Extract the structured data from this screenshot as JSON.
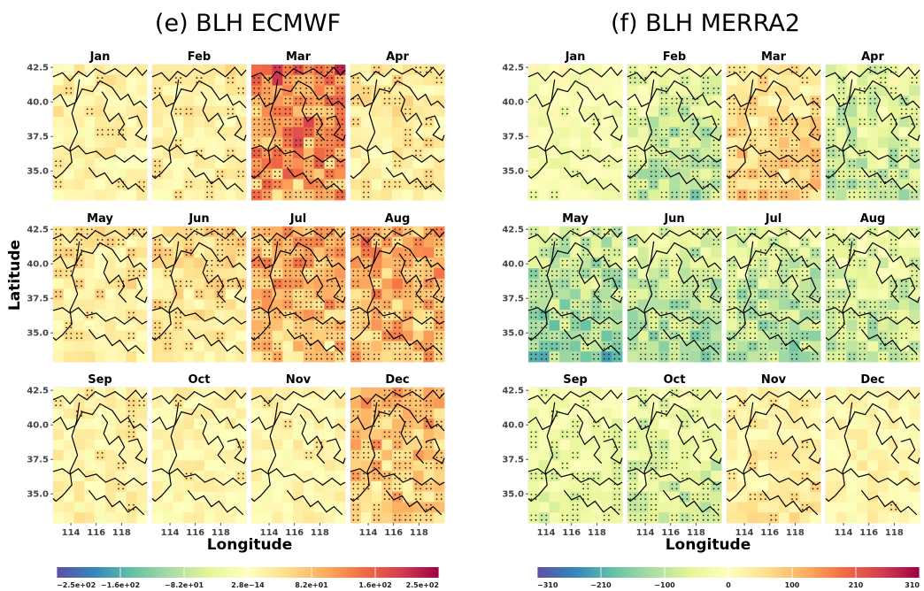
{
  "panels": [
    {
      "title": "(e) BLH ECMWF",
      "xlabel": "Longitude",
      "ylabel": "Latitude",
      "colorbar": {
        "min": -250,
        "max": 250,
        "tick_labels": [
          "−2.5e+02",
          "−1.6e+02",
          "−8.2e+01",
          "2.8e−14",
          "8.2e+01",
          "1.6e+02",
          "2.5e+02"
        ]
      }
    },
    {
      "title": "(f) BLH MERRA2",
      "xlabel": "Longitude",
      "ylabel": "",
      "colorbar": {
        "min": -310,
        "max": 310,
        "tick_labels": [
          "−310",
          "−210",
          "−100",
          "0",
          "100",
          "210",
          "310"
        ]
      }
    }
  ],
  "months": [
    "Jan",
    "Feb",
    "Mar",
    "Apr",
    "May",
    "Jun",
    "Jul",
    "Aug",
    "Sep",
    "Oct",
    "Nov",
    "Dec"
  ],
  "y_tick_labels": [
    "42.5",
    "40.0",
    "37.5",
    "35.0"
  ],
  "x_tick_labels": [
    "114",
    "116",
    "118"
  ],
  "colors": {
    "palette": [
      "#5e4fa2",
      "#3288bd",
      "#66c2a5",
      "#abdda4",
      "#e6f598",
      "#ffffbf",
      "#fee08b",
      "#fdae61",
      "#f46d43",
      "#d53e4f",
      "#9e0142"
    ],
    "border": "#000000",
    "stipple": "#222222"
  },
  "chart_data": [
    {
      "type": "heatmap",
      "title": "(e) BLH ECMWF",
      "xlabel": "Longitude",
      "ylabel": "Latitude",
      "value_range": [
        -250,
        250
      ],
      "monthly_mean_anomaly": {
        "Jan": 20,
        "Feb": 25,
        "Mar": 120,
        "Apr": 30,
        "May": 30,
        "Jun": 40,
        "Jul": 80,
        "Aug": 90,
        "Sep": 20,
        "Oct": 15,
        "Nov": 15,
        "Dec": 70
      }
    },
    {
      "type": "heatmap",
      "title": "(f) BLH MERRA2",
      "xlabel": "Longitude",
      "ylabel": "",
      "value_range": [
        -310,
        310
      ],
      "monthly_mean_anomaly": {
        "Jan": -20,
        "Feb": -80,
        "Mar": 60,
        "Apr": -70,
        "May": -110,
        "Jun": -90,
        "Jul": -90,
        "Aug": -70,
        "Sep": -40,
        "Oct": -60,
        "Nov": 30,
        "Dec": 10
      }
    }
  ]
}
